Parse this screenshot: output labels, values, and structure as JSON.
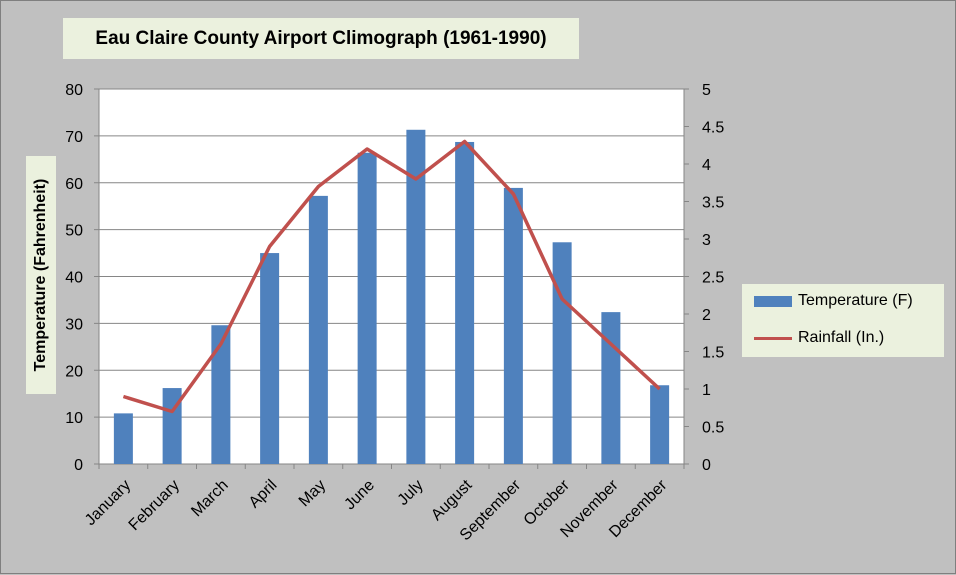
{
  "chart_data": {
    "type": "bar",
    "title": "Eau Claire County Airport Climograph (1961-1990)",
    "ylabel": "Temperature (Fahrenheit)",
    "categories": [
      "January",
      "February",
      "March",
      "April",
      "May",
      "June",
      "July",
      "August",
      "September",
      "October",
      "November",
      "December"
    ],
    "series": [
      {
        "name": "Temperature (F)",
        "type": "bar",
        "axis": "left",
        "color": "#4f81bd",
        "values": [
          10.8,
          16.2,
          29.6,
          45.0,
          57.2,
          66.4,
          71.3,
          68.7,
          58.9,
          47.3,
          32.4,
          16.8
        ]
      },
      {
        "name": "Rainfall (In.)",
        "type": "line",
        "axis": "right",
        "color": "#c0504d",
        "values": [
          0.9,
          0.7,
          1.6,
          2.9,
          3.7,
          4.2,
          3.8,
          4.3,
          3.6,
          2.2,
          1.6,
          1.0
        ]
      }
    ],
    "y_left": {
      "min": 0,
      "max": 80,
      "ticks": [
        "0",
        "10",
        "20",
        "30",
        "40",
        "50",
        "60",
        "70",
        "80"
      ]
    },
    "y_right": {
      "min": 0,
      "max": 5,
      "ticks": [
        "0",
        "0.5",
        "1",
        "1.5",
        "2",
        "2.5",
        "3",
        "3.5",
        "4",
        "4.5",
        "5"
      ]
    },
    "grid": true,
    "legend_position": "right"
  }
}
